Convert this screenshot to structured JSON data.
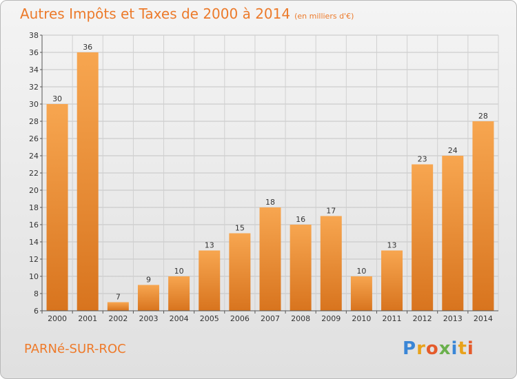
{
  "header": {
    "title": "Autres Impôts et Taxes de 2000 à 2014",
    "subtitle": "(en milliers d'€)"
  },
  "footer": {
    "town": "PARNé-SUR-ROC",
    "logo": "Proxiti"
  },
  "colors": {
    "bar_top": "#f7a650",
    "bar_bottom": "#d8741e",
    "title": "#ec7a2a",
    "axis": "#555555"
  },
  "chart_data": {
    "type": "bar",
    "categories": [
      "2000",
      "2001",
      "2002",
      "2003",
      "2004",
      "2005",
      "2006",
      "2007",
      "2008",
      "2009",
      "2010",
      "2011",
      "2012",
      "2013",
      "2014"
    ],
    "values": [
      30,
      36,
      7,
      9,
      10,
      13,
      15,
      18,
      16,
      17,
      10,
      13,
      23,
      24,
      28
    ],
    "ylim": [
      6,
      38
    ],
    "yticks": [
      6,
      8,
      10,
      12,
      14,
      16,
      18,
      20,
      22,
      24,
      26,
      28,
      30,
      32,
      34,
      36,
      38
    ],
    "grid": true
  }
}
